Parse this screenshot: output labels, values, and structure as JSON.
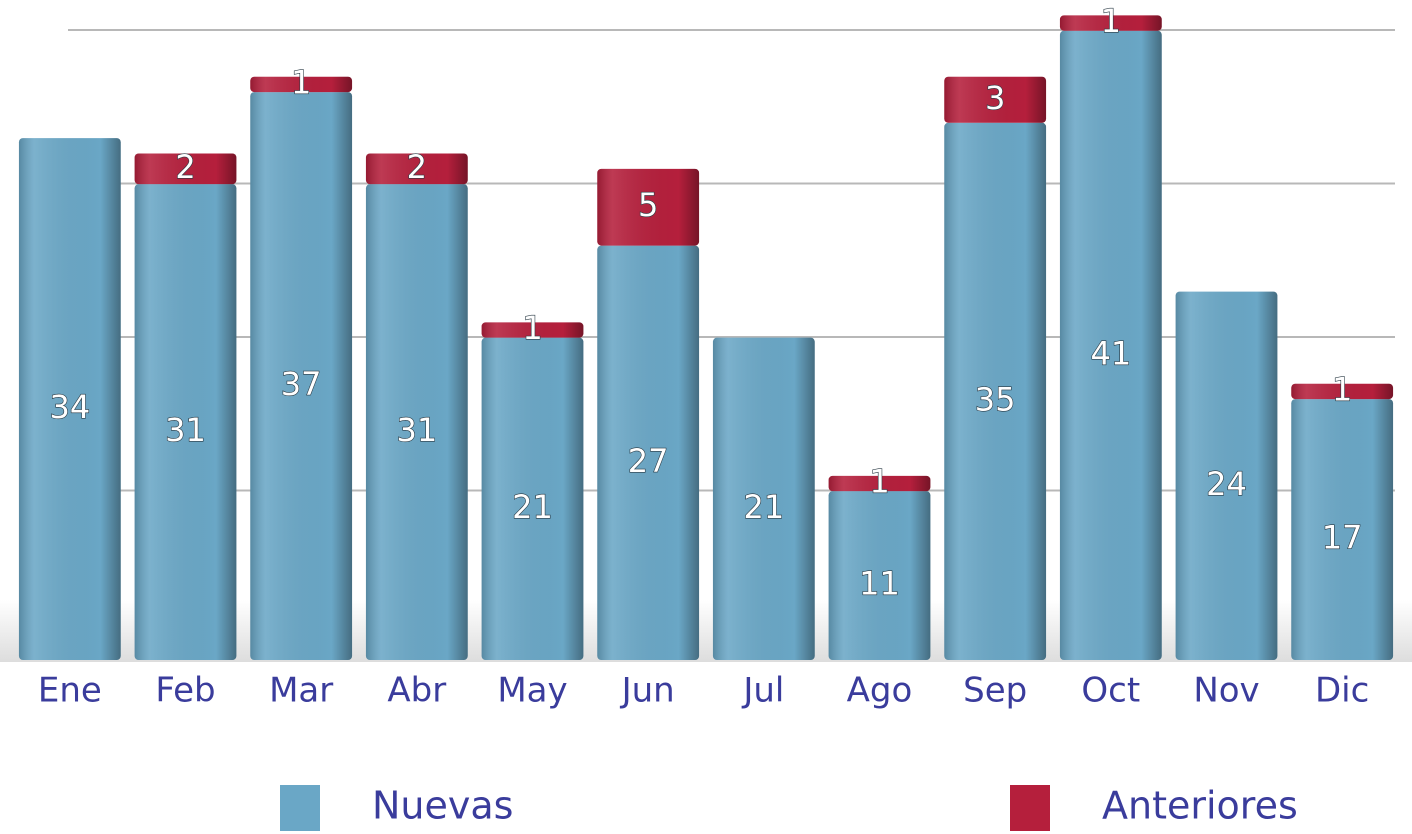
{
  "chart_data": {
    "type": "bar",
    "stacked": true,
    "categories": [
      "Ene",
      "Feb",
      "Mar",
      "Abr",
      "May",
      "Jun",
      "Jul",
      "Ago",
      "Sep",
      "Oct",
      "Nov",
      "Dic"
    ],
    "series": [
      {
        "name": "Nuevas",
        "color": "#6aa7c6",
        "values": [
          34,
          31,
          37,
          31,
          21,
          27,
          21,
          11,
          35,
          41,
          24,
          17
        ]
      },
      {
        "name": "Anteriores",
        "color": "#b51f3c",
        "values": [
          null,
          2,
          1,
          2,
          1,
          5,
          null,
          1,
          3,
          1,
          null,
          1
        ]
      }
    ],
    "ylim": [
      0,
      43
    ],
    "yticks": [
      10,
      20,
      30,
      40
    ],
    "grid": true
  }
}
